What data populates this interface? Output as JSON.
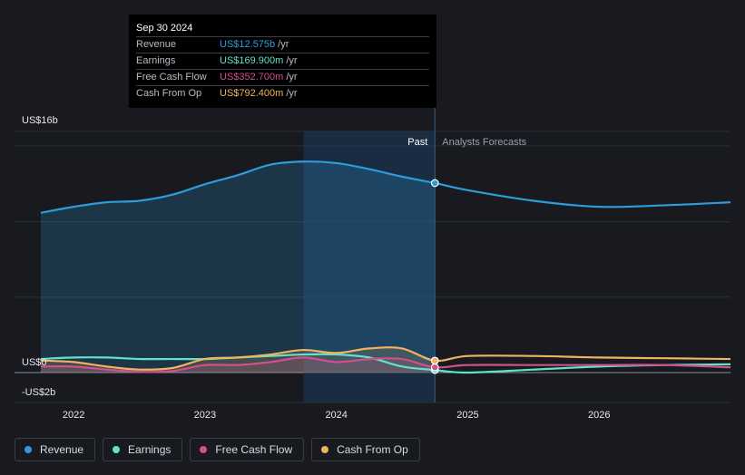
{
  "tooltip": {
    "date": "Sep 30 2024",
    "rows": [
      {
        "label": "Revenue",
        "value": "US$12.575b",
        "unit": "/yr",
        "color": "#2d9cdb"
      },
      {
        "label": "Earnings",
        "value": "US$169.900m",
        "unit": "/yr",
        "color": "#5fe3c9"
      },
      {
        "label": "Free Cash Flow",
        "value": "US$352.700m",
        "unit": "/yr",
        "color": "#d0508f"
      },
      {
        "label": "Cash From Op",
        "value": "US$792.400m",
        "unit": "/yr",
        "color": "#f2b260"
      }
    ]
  },
  "legend": [
    {
      "label": "Revenue",
      "color": "#2d9cdb"
    },
    {
      "label": "Earnings",
      "color": "#5fe3c9"
    },
    {
      "label": "Free Cash Flow",
      "color": "#d0508f"
    },
    {
      "label": "Cash From Op",
      "color": "#f2b260"
    }
  ],
  "chart_data": {
    "type": "line",
    "title": "",
    "xlabel": "",
    "ylabel": "",
    "y_tick_labels": [
      "US$16b",
      "US$0",
      "-US$2b"
    ],
    "x_tick_labels": [
      "2022",
      "2023",
      "2024",
      "2025",
      "2026"
    ],
    "ylim": [
      -2,
      16
    ],
    "xlim": [
      2021.55,
      2027.0
    ],
    "grid": true,
    "past_label": "Past",
    "forecast_label": "Analysts Forecasts",
    "divider_x": 2024.75,
    "highlight_start_x": 2023.75,
    "series": [
      {
        "name": "Revenue",
        "color": "#2d9cdb",
        "area": true,
        "x": [
          2021.75,
          2022.0,
          2022.25,
          2022.5,
          2022.75,
          2023.0,
          2023.25,
          2023.5,
          2023.75,
          2024.0,
          2024.25,
          2024.5,
          2024.75,
          2025.0,
          2025.5,
          2026.0,
          2026.5,
          2027.0
        ],
        "y": [
          10.6,
          11.0,
          11.3,
          11.4,
          11.8,
          12.5,
          13.1,
          13.8,
          14.0,
          13.9,
          13.5,
          13.0,
          12.575,
          12.1,
          11.4,
          11.0,
          11.1,
          11.3
        ]
      },
      {
        "name": "Earnings",
        "color": "#5fe3c9",
        "area": false,
        "x": [
          2021.75,
          2022.0,
          2022.25,
          2022.5,
          2022.75,
          2023.0,
          2023.25,
          2023.5,
          2023.75,
          2024.0,
          2024.25,
          2024.5,
          2024.75,
          2025.0,
          2025.5,
          2026.0,
          2026.5,
          2027.0
        ],
        "y": [
          0.9,
          1.0,
          1.0,
          0.9,
          0.9,
          0.9,
          1.0,
          1.1,
          1.2,
          1.2,
          1.0,
          0.4,
          0.17,
          0.0,
          0.2,
          0.4,
          0.5,
          0.55
        ]
      },
      {
        "name": "Free Cash Flow",
        "color": "#d0508f",
        "area": true,
        "x": [
          2021.75,
          2022.0,
          2022.25,
          2022.5,
          2022.75,
          2023.0,
          2023.25,
          2023.5,
          2023.75,
          2024.0,
          2024.25,
          2024.5,
          2024.75,
          2025.0,
          2025.5,
          2026.0,
          2026.5,
          2027.0
        ],
        "y": [
          0.4,
          0.4,
          0.2,
          0.05,
          0.1,
          0.5,
          0.5,
          0.7,
          1.0,
          0.7,
          0.9,
          0.9,
          0.35,
          0.5,
          0.5,
          0.5,
          0.5,
          0.35
        ]
      },
      {
        "name": "Cash From Op",
        "color": "#f2b260",
        "area": true,
        "x": [
          2021.75,
          2022.0,
          2022.25,
          2022.5,
          2022.75,
          2023.0,
          2023.25,
          2023.5,
          2023.75,
          2024.0,
          2024.25,
          2024.5,
          2024.75,
          2025.0,
          2025.5,
          2026.0,
          2026.5,
          2027.0
        ],
        "y": [
          0.8,
          0.7,
          0.4,
          0.2,
          0.3,
          0.9,
          1.0,
          1.2,
          1.5,
          1.3,
          1.6,
          1.6,
          0.79,
          1.1,
          1.1,
          1.0,
          0.95,
          0.9
        ]
      }
    ]
  }
}
